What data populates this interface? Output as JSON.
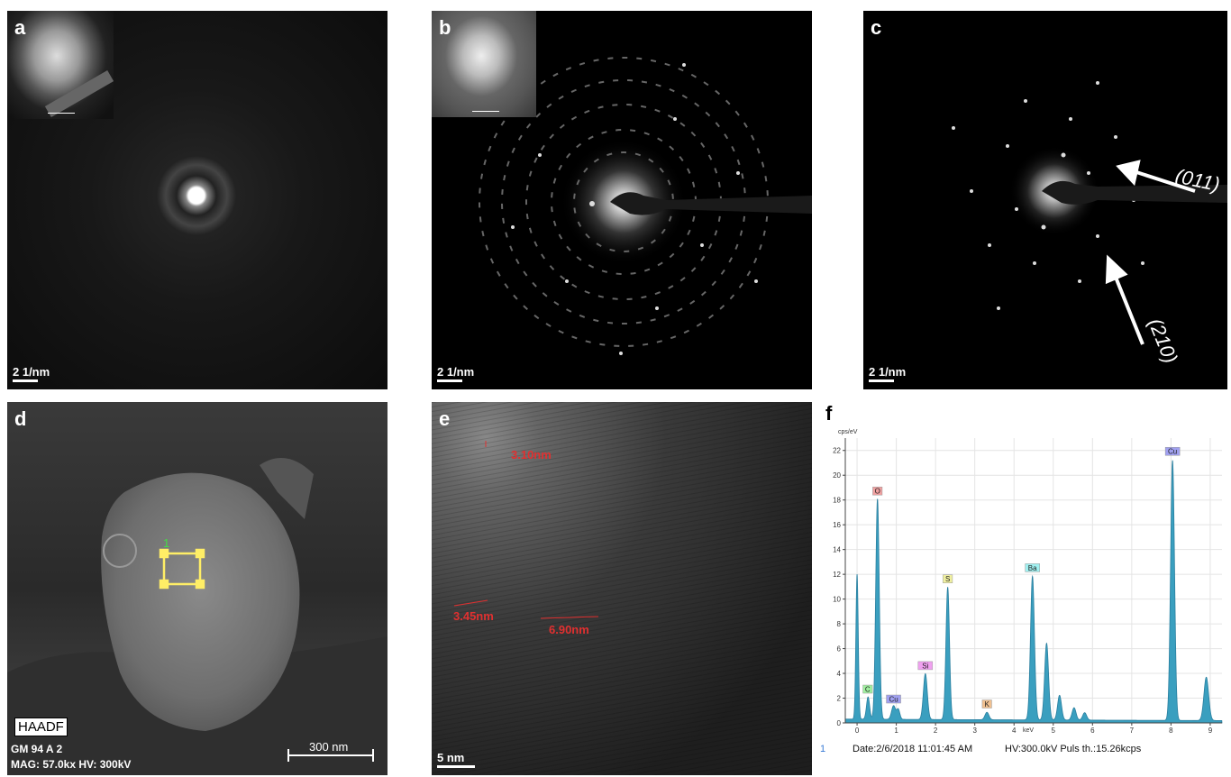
{
  "panels": {
    "a": {
      "label": "a",
      "scale": "2 1/nm"
    },
    "b": {
      "label": "b",
      "scale": "2 1/nm"
    },
    "c": {
      "label": "c",
      "scale": "2 1/nm",
      "arrow1": "(011)",
      "arrow2": "(210)"
    },
    "d": {
      "label": "d",
      "mode": "HAADF",
      "sample": "GM 94 A 2",
      "mag": "MAG: 57.0kx  HV: 300kV",
      "scale": "300 nm",
      "marker": "1"
    },
    "e": {
      "label": "e",
      "scale": "5 nm",
      "m1": "3.10nm",
      "m2": "3.45nm",
      "m3": "6.90nm"
    },
    "f": {
      "label": "f",
      "footer_index": "1",
      "footer_date": "Date:2/6/2018 11:01:45 AM",
      "footer_hv": "HV:300.0kV  Puls th.:15.26kcps"
    }
  },
  "chart_data": {
    "type": "line",
    "title": "",
    "xlabel": "keV",
    "ylabel": "cps/eV",
    "xlim": [
      -0.3,
      9.3
    ],
    "ylim": [
      0,
      23
    ],
    "x_ticks": [
      0,
      1,
      2,
      3,
      4,
      5,
      6,
      7,
      8,
      9
    ],
    "y_ticks": [
      0,
      2,
      4,
      6,
      8,
      10,
      12,
      14,
      16,
      18,
      20,
      22
    ],
    "baseline": 0.3,
    "peaks": [
      {
        "x": 0.0,
        "y": 11.7,
        "w": 0.03
      },
      {
        "x": 0.28,
        "y": 1.8,
        "w": 0.04
      },
      {
        "x": 0.52,
        "y": 17.8,
        "w": 0.045
      },
      {
        "x": 0.93,
        "y": 1.1,
        "w": 0.05
      },
      {
        "x": 1.05,
        "y": 0.8,
        "w": 0.04
      },
      {
        "x": 1.74,
        "y": 3.7,
        "w": 0.05
      },
      {
        "x": 2.31,
        "y": 10.7,
        "w": 0.045
      },
      {
        "x": 3.31,
        "y": 0.6,
        "w": 0.05
      },
      {
        "x": 4.47,
        "y": 11.6,
        "w": 0.05
      },
      {
        "x": 4.83,
        "y": 6.2,
        "w": 0.05
      },
      {
        "x": 5.16,
        "y": 2.0,
        "w": 0.05
      },
      {
        "x": 5.53,
        "y": 1.0,
        "w": 0.05
      },
      {
        "x": 5.8,
        "y": 0.6,
        "w": 0.05
      },
      {
        "x": 8.04,
        "y": 21.0,
        "w": 0.05
      },
      {
        "x": 8.9,
        "y": 3.5,
        "w": 0.06
      }
    ],
    "annotations": [
      {
        "text": "O",
        "x": 0.52,
        "y": 18.4,
        "color": "#f0a0a0"
      },
      {
        "text": "C",
        "x": 0.27,
        "y": 2.4,
        "color": "#a0f0a0"
      },
      {
        "text": "Cu",
        "x": 0.93,
        "y": 1.6,
        "color": "#a0a0f0"
      },
      {
        "text": "Si",
        "x": 1.74,
        "y": 4.3,
        "color": "#f0a0f0"
      },
      {
        "text": "S",
        "x": 2.31,
        "y": 11.3,
        "color": "#f0f0a0"
      },
      {
        "text": "K",
        "x": 3.31,
        "y": 1.2,
        "color": "#f0c090"
      },
      {
        "text": "Ba",
        "x": 4.47,
        "y": 12.2,
        "color": "#a0f0f0"
      },
      {
        "text": "Cu",
        "x": 8.04,
        "y": 21.6,
        "color": "#a0a0f0"
      }
    ],
    "fill_color": "#3a9fbf"
  }
}
